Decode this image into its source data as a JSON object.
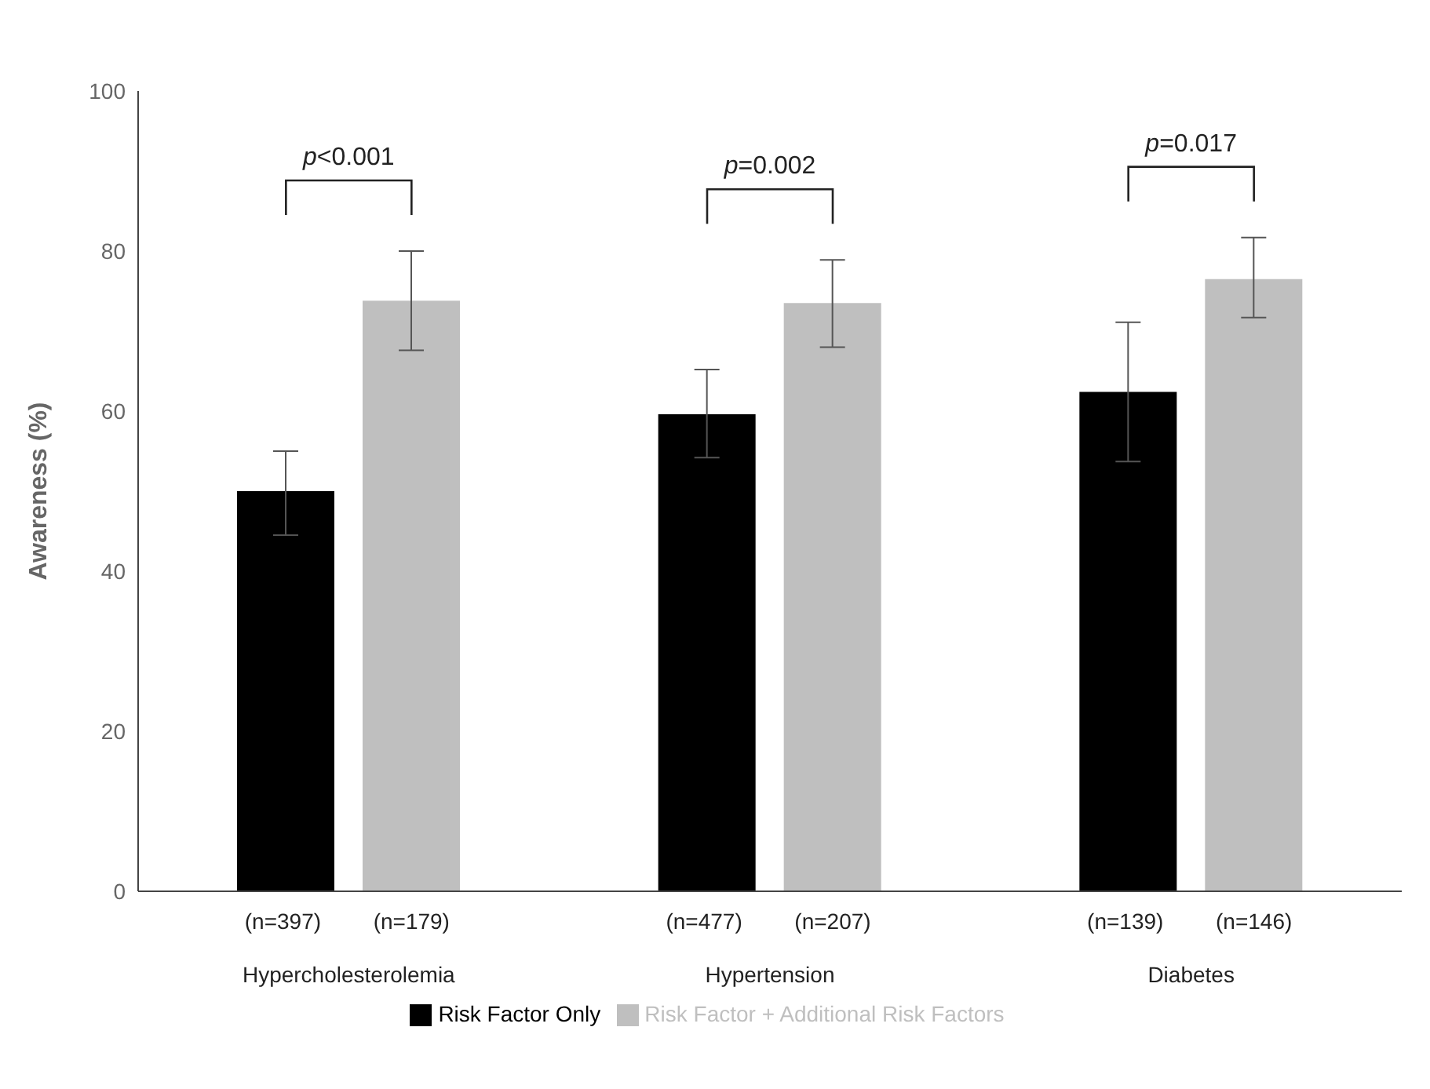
{
  "chart_data": {
    "type": "bar",
    "ylabel": "Awareness (%)",
    "categories": [
      "(n=397) (n=179)\nHypercholesterolemia",
      "(n=477) (n=207)\nHypertension",
      "(n=139) (n=146)\nDiabetes"
    ],
    "series": [
      {
        "name": "Risk Factor Only",
        "color": "#000000",
        "values": [
          50,
          59.6,
          62.4
        ],
        "errors": [
          [
            44.5,
            55
          ],
          [
            54.2,
            65.2
          ],
          [
            53.7,
            71.1
          ]
        ]
      },
      {
        "name": "Risk Factor + Additional Risk Factors",
        "color": "#bfbfbf",
        "values": [
          73.8,
          73.5,
          76.5
        ],
        "errors": [
          [
            67.6,
            80
          ],
          [
            68,
            78.9
          ],
          [
            71.7,
            81.7
          ]
        ]
      }
    ],
    "annotations": [
      "p<0.001",
      "p=0.002",
      "p=0.017"
    ],
    "ylim": [
      0,
      100
    ],
    "yticks": [
      0,
      20,
      40,
      60,
      80,
      100
    ],
    "grid": false,
    "legend": "bottom"
  }
}
